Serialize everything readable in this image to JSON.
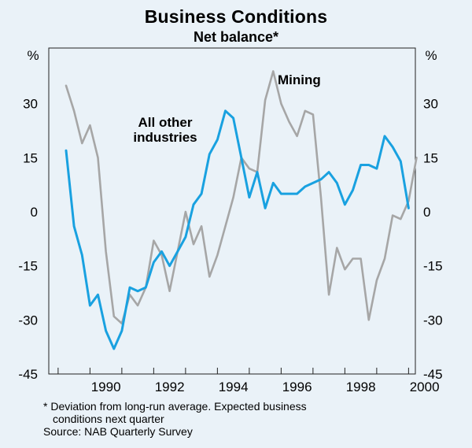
{
  "chart_data": {
    "type": "line",
    "title": "Business Conditions",
    "subtitle": "Net balance*",
    "y_unit_left": "%",
    "y_unit_right": "%",
    "ylim": [
      -45,
      45
    ],
    "yticks": [
      30,
      15,
      0,
      -15,
      -30,
      -45
    ],
    "ytick_labels": [
      "30",
      "15",
      "0",
      "-15",
      "-30",
      "-45"
    ],
    "xlim": [
      1989,
      2000.7
    ],
    "xtick_years": [
      1990,
      1992,
      1994,
      1996,
      1998,
      2000
    ],
    "xtick_labels": [
      "1990",
      "1992",
      "1994",
      "1996",
      "1998",
      "2000"
    ],
    "series": [
      {
        "name": "Mining",
        "label": "Mining",
        "color": "#a6a6a6",
        "x": [
          1989.25,
          1989.5,
          1989.75,
          1990.0,
          1990.25,
          1990.5,
          1990.75,
          1991.0,
          1991.25,
          1991.5,
          1991.75,
          1992.0,
          1992.25,
          1992.5,
          1992.75,
          1993.0,
          1993.25,
          1993.5,
          1993.75,
          1994.0,
          1994.25,
          1994.5,
          1994.75,
          1995.0,
          1995.25,
          1995.5,
          1995.75,
          1996.0,
          1996.25,
          1996.5,
          1996.75,
          1997.0,
          1997.25,
          1997.5,
          1997.75,
          1998.0,
          1998.25,
          1998.5,
          1998.75,
          1999.0,
          1999.25,
          1999.5,
          1999.75,
          2000.0,
          2000.25
        ],
        "values": [
          35,
          28,
          19,
          24,
          15,
          -11,
          -29,
          -31,
          -23,
          -26,
          -21,
          -8,
          -12,
          -22,
          -11,
          0,
          -9,
          -4,
          -18,
          -12,
          -4,
          4,
          15,
          12,
          11,
          31,
          39,
          30,
          25,
          21,
          28,
          27,
          4,
          -23,
          -10,
          -16,
          -13,
          -13,
          -30,
          -19,
          -13,
          -1,
          -2,
          3,
          15
        ]
      },
      {
        "name": "All other industries",
        "label": "All other industries",
        "color": "#19a1e0",
        "x": [
          1989.25,
          1989.5,
          1989.75,
          1990.0,
          1990.25,
          1990.5,
          1990.75,
          1991.0,
          1991.25,
          1991.5,
          1991.75,
          1992.0,
          1992.25,
          1992.5,
          1992.75,
          1993.0,
          1993.25,
          1993.5,
          1993.75,
          1994.0,
          1994.25,
          1994.5,
          1994.75,
          1995.0,
          1995.25,
          1995.5,
          1995.75,
          1996.0,
          1996.25,
          1996.5,
          1996.75,
          1997.0,
          1997.25,
          1997.5,
          1997.75,
          1998.0,
          1998.25,
          1998.5,
          1998.75,
          1999.0,
          1999.25,
          1999.5,
          1999.75,
          2000.0
        ],
        "values": [
          17,
          -4,
          -12,
          -26,
          -23,
          -33,
          -38,
          -33,
          -21,
          -22,
          -21,
          -14,
          -11,
          -15,
          -11,
          -7,
          2,
          5,
          16,
          20,
          28,
          26,
          15,
          4,
          11,
          1,
          8,
          5,
          5,
          5,
          7,
          8,
          9,
          11,
          8,
          2,
          6,
          13,
          13,
          12,
          21,
          18,
          14,
          1
        ]
      }
    ],
    "annotations": {
      "mining": "Mining",
      "others_line1": "All other",
      "others_line2": "industries"
    }
  },
  "footnote": {
    "line1": "* Deviation from long-run average. Expected business",
    "line2": "conditions next quarter",
    "source": "Source: NAB Quarterly Survey"
  }
}
